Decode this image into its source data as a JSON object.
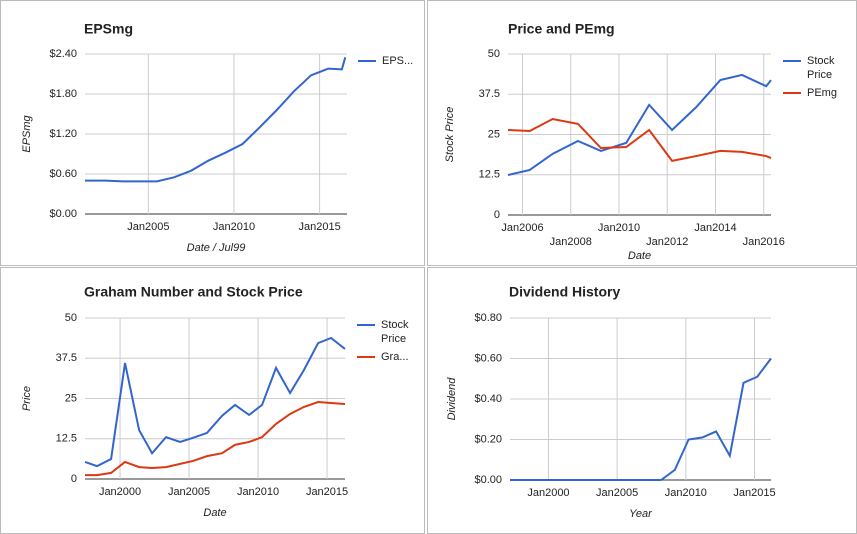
{
  "chart_data": [
    {
      "type": "line",
      "title": "EPSmg",
      "x_label": "Date / Jul99",
      "y_label": "EPSmg",
      "x": [
        2001.3,
        2002.5,
        2003.5,
        2004.5,
        2005.5,
        2006.5,
        2007.5,
        2008.5,
        2009.5,
        2010.5,
        2011.5,
        2012.5,
        2013.5,
        2014.5,
        2015.5,
        2016.3,
        2016.5
      ],
      "series": [
        {
          "name": "EPS...",
          "color": "#3366cc",
          "values": [
            0.5,
            0.5,
            0.49,
            0.49,
            0.49,
            0.55,
            0.65,
            0.8,
            0.92,
            1.05,
            1.3,
            1.56,
            1.84,
            2.08,
            2.18,
            2.17,
            2.35
          ]
        }
      ],
      "xlim": [
        2001.3,
        2016.6
      ],
      "ylim": [
        0,
        2.4
      ],
      "xticks": [
        {
          "value": 2005,
          "label": "Jan2005"
        },
        {
          "value": 2010,
          "label": "Jan2010"
        },
        {
          "value": 2015,
          "label": "Jan2015"
        }
      ],
      "yticks": [
        {
          "value": 0,
          "label": "$0.00"
        },
        {
          "value": 0.6,
          "label": "$0.60"
        },
        {
          "value": 1.2,
          "label": "$1.20"
        },
        {
          "value": 1.8,
          "label": "$1.80"
        },
        {
          "value": 2.4,
          "label": "$2.40"
        }
      ],
      "grid": true
    },
    {
      "type": "line",
      "title": "Price and PEmg",
      "x_label": "Date",
      "y_label": "Stock Price",
      "x": [
        2005.4,
        2006.3,
        2007.25,
        2008.3,
        2009.25,
        2010.3,
        2011.25,
        2012.2,
        2013.2,
        2014.2,
        2015.1,
        2016.1,
        2016.3
      ],
      "series": [
        {
          "name": "Stock Price",
          "color": "#3366cc",
          "values": [
            12.4,
            14,
            19,
            23,
            19.9,
            22.4,
            34.2,
            26.4,
            33.5,
            41.9,
            43.5,
            40,
            41.9
          ]
        },
        {
          "name": "PEmg",
          "color": "#dc3912",
          "values": [
            26.4,
            26.1,
            29.8,
            28.3,
            20.8,
            21.1,
            26.4,
            16.8,
            18.3,
            19.9,
            19.6,
            18.3,
            17.7
          ]
        }
      ],
      "xlim": [
        2005.4,
        2016.3
      ],
      "ylim": [
        0,
        50
      ],
      "xticks": [
        {
          "value": 2006,
          "label": "Jan2006"
        },
        {
          "value": 2008,
          "label": "Jan2008"
        },
        {
          "value": 2010,
          "label": "Jan2010"
        },
        {
          "value": 2012,
          "label": "Jan2012"
        },
        {
          "value": 2014,
          "label": "Jan2014"
        },
        {
          "value": 2016,
          "label": "Jan2016"
        }
      ],
      "yticks": [
        0,
        12.5,
        25,
        37.5,
        50
      ],
      "grid": true
    },
    {
      "type": "line",
      "title": "Graham Number and Stock Price",
      "x_label": "Date",
      "y_label": "Price",
      "x": [
        1997.46,
        1998.33,
        1999.35,
        2000.36,
        2001.38,
        2002.32,
        2003.33,
        2004.35,
        2005.29,
        2006.3,
        2007.39,
        2008.33,
        2009.35,
        2010.29,
        2011.3,
        2012.32,
        2013.33,
        2014.35,
        2015.29,
        2016.3
      ],
      "series": [
        {
          "name": "Stock Price",
          "color": "#3366cc",
          "values": [
            5.3,
            4,
            6.2,
            36,
            15.2,
            8,
            13,
            11.5,
            12.8,
            14.3,
            19.6,
            23,
            19.9,
            23,
            34.5,
            26.7,
            33.9,
            42.2,
            43.8,
            40.4
          ]
        },
        {
          "name": "Gra...",
          "color": "#dc3912",
          "values": [
            1.2,
            1.2,
            1.9,
            5.3,
            3.7,
            3.4,
            3.7,
            4.7,
            5.6,
            7.1,
            8,
            10.6,
            11.5,
            13,
            17.1,
            20.2,
            22.4,
            23.9,
            23.6,
            23.3
          ]
        }
      ],
      "xlim": [
        1997.46,
        2016.3
      ],
      "ylim": [
        0,
        50
      ],
      "xticks": [
        {
          "value": 2000,
          "label": "Jan2000"
        },
        {
          "value": 2005,
          "label": "Jan2005"
        },
        {
          "value": 2010,
          "label": "Jan2010"
        },
        {
          "value": 2015,
          "label": "Jan2015"
        }
      ],
      "yticks": [
        0,
        12.5,
        25,
        37.5,
        50
      ],
      "grid": true
    },
    {
      "type": "line",
      "title": "Dividend History",
      "x_label": "Year",
      "y_label": "Dividend",
      "x": [
        1997.2,
        1998.2,
        1999.2,
        2000.2,
        2001.2,
        2002.2,
        2003.2,
        2004.2,
        2005.2,
        2006.2,
        2007.2,
        2008.2,
        2009.2,
        2010.2,
        2011.2,
        2012.2,
        2013.2,
        2014.2,
        2015.2,
        2016.2
      ],
      "series": [
        {
          "color": "#3366cc",
          "values": [
            0,
            0,
            0,
            0,
            0,
            0,
            0,
            0,
            0,
            0,
            0,
            0,
            0.05,
            0.2,
            0.21,
            0.24,
            0.12,
            0.48,
            0.51,
            0.6
          ]
        }
      ],
      "xlim": [
        1997.2,
        2016.2
      ],
      "ylim": [
        0,
        0.8
      ],
      "xticks": [
        {
          "value": 2000,
          "label": "Jan2000"
        },
        {
          "value": 2005,
          "label": "Jan2005"
        },
        {
          "value": 2010,
          "label": "Jan2010"
        },
        {
          "value": 2015,
          "label": "Jan2015"
        }
      ],
      "yticks": [
        {
          "value": 0,
          "label": "$0.00"
        },
        {
          "value": 0.2,
          "label": "$0.20"
        },
        {
          "value": 0.4,
          "label": "$0.40"
        },
        {
          "value": 0.6,
          "label": "$0.60"
        },
        {
          "value": 0.8,
          "label": "$0.80"
        }
      ],
      "grid": true
    }
  ]
}
